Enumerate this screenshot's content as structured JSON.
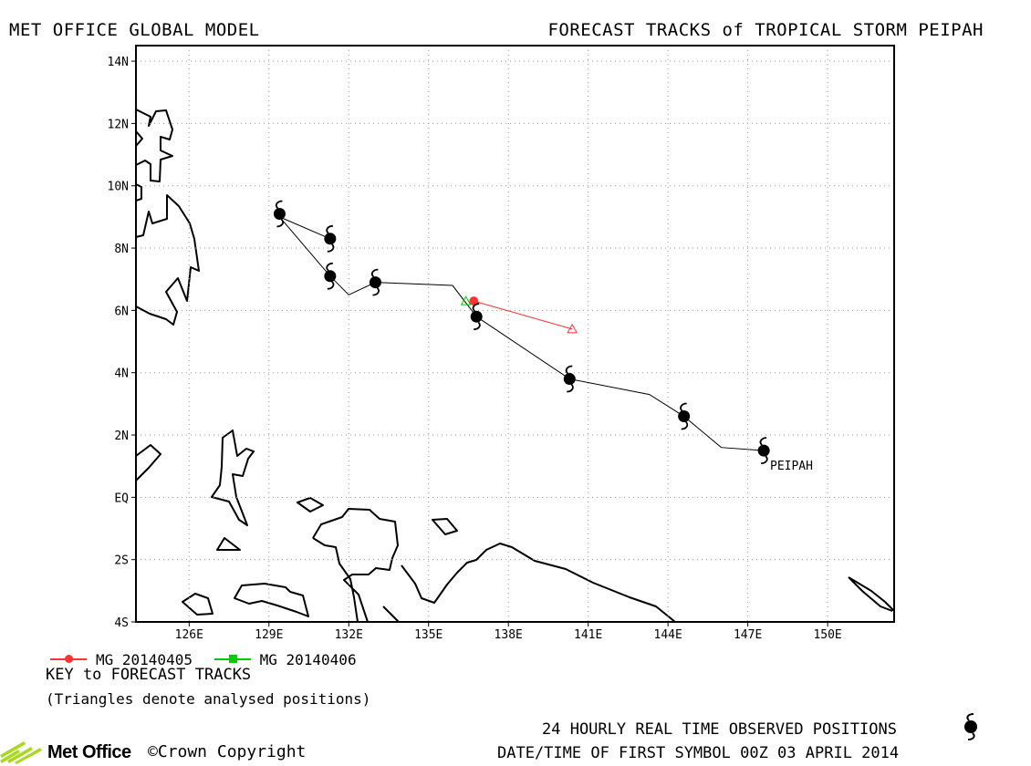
{
  "header": {
    "left_title": "MET OFFICE GLOBAL MODEL",
    "right_title": "FORECAST TRACKS of TROPICAL STORM PEIPAH"
  },
  "map": {
    "lon_range": [
      124,
      152.5
    ],
    "lat_range": [
      -4,
      14.5
    ],
    "lat_ticks": [
      {
        "value": 14,
        "label": "14N"
      },
      {
        "value": 12,
        "label": "12N"
      },
      {
        "value": 10,
        "label": "10N"
      },
      {
        "value": 8,
        "label": "8N"
      },
      {
        "value": 6,
        "label": "6N"
      },
      {
        "value": 4,
        "label": "4N"
      },
      {
        "value": 2,
        "label": "2N"
      },
      {
        "value": 0,
        "label": "EQ"
      },
      {
        "value": -2,
        "label": "2S"
      },
      {
        "value": -4,
        "label": "4S"
      }
    ],
    "lon_ticks": [
      {
        "value": 126,
        "label": "126E"
      },
      {
        "value": 129,
        "label": "129E"
      },
      {
        "value": 132,
        "label": "132E"
      },
      {
        "value": 135,
        "label": "135E"
      },
      {
        "value": 138,
        "label": "138E"
      },
      {
        "value": 141,
        "label": "141E"
      },
      {
        "value": 144,
        "label": "144E"
      },
      {
        "value": 147,
        "label": "147E"
      },
      {
        "value": 150,
        "label": "150E"
      }
    ],
    "grid": "dotted",
    "storm_label": "PEIPAH",
    "observed_track": [
      {
        "lon": 147.6,
        "lat": 1.5
      },
      {
        "lon": 146.0,
        "lat": 1.6
      },
      {
        "lon": 144.6,
        "lat": 2.6
      },
      {
        "lon": 143.3,
        "lat": 3.3
      },
      {
        "lon": 140.3,
        "lat": 3.8
      },
      {
        "lon": 136.8,
        "lat": 5.8
      },
      {
        "lon": 135.9,
        "lat": 6.8
      },
      {
        "lon": 133.0,
        "lat": 6.9
      },
      {
        "lon": 132.0,
        "lat": 6.5
      },
      {
        "lon": 131.3,
        "lat": 7.1
      },
      {
        "lon": 129.4,
        "lat": 9.0
      }
    ],
    "observed_positions": [
      {
        "lon": 147.6,
        "lat": 1.5
      },
      {
        "lon": 144.6,
        "lat": 2.6
      },
      {
        "lon": 140.3,
        "lat": 3.8
      },
      {
        "lon": 136.8,
        "lat": 5.8
      },
      {
        "lon": 133.0,
        "lat": 6.9
      },
      {
        "lon": 131.3,
        "lat": 7.1
      },
      {
        "lon": 131.3,
        "lat": 8.3
      },
      {
        "lon": 129.4,
        "lat": 9.1
      }
    ],
    "secondary_track": [
      {
        "lon": 131.3,
        "lat": 8.3
      },
      {
        "lon": 129.4,
        "lat": 9.0
      }
    ]
  },
  "forecast_tracks": [
    {
      "name": "MG 20140405",
      "color": "#ff3333",
      "marker": "circle",
      "points": [
        {
          "lon": 136.7,
          "lat": 6.3
        },
        {
          "lon": 140.4,
          "lat": 5.4
        }
      ],
      "start_marker": "circle",
      "end_marker": "triangle"
    },
    {
      "name": "MG 20140406",
      "color": "#00cc00",
      "marker": "square",
      "points": [
        {
          "lon": 136.4,
          "lat": 6.3
        }
      ],
      "start_marker": "triangle",
      "end_marker": "triangle"
    }
  ],
  "key": {
    "title": "KEY to FORECAST TRACKS",
    "note": "(Triangles denote analysed positions)"
  },
  "footer": {
    "observed_text": "24 HOURLY REAL TIME OBSERVED POSITIONS",
    "datetime_text": "DATE/TIME OF FIRST SYMBOL 00Z 03 APRIL 2014",
    "logo_text": "Met Office",
    "copyright_text": "©Crown Copyright"
  }
}
